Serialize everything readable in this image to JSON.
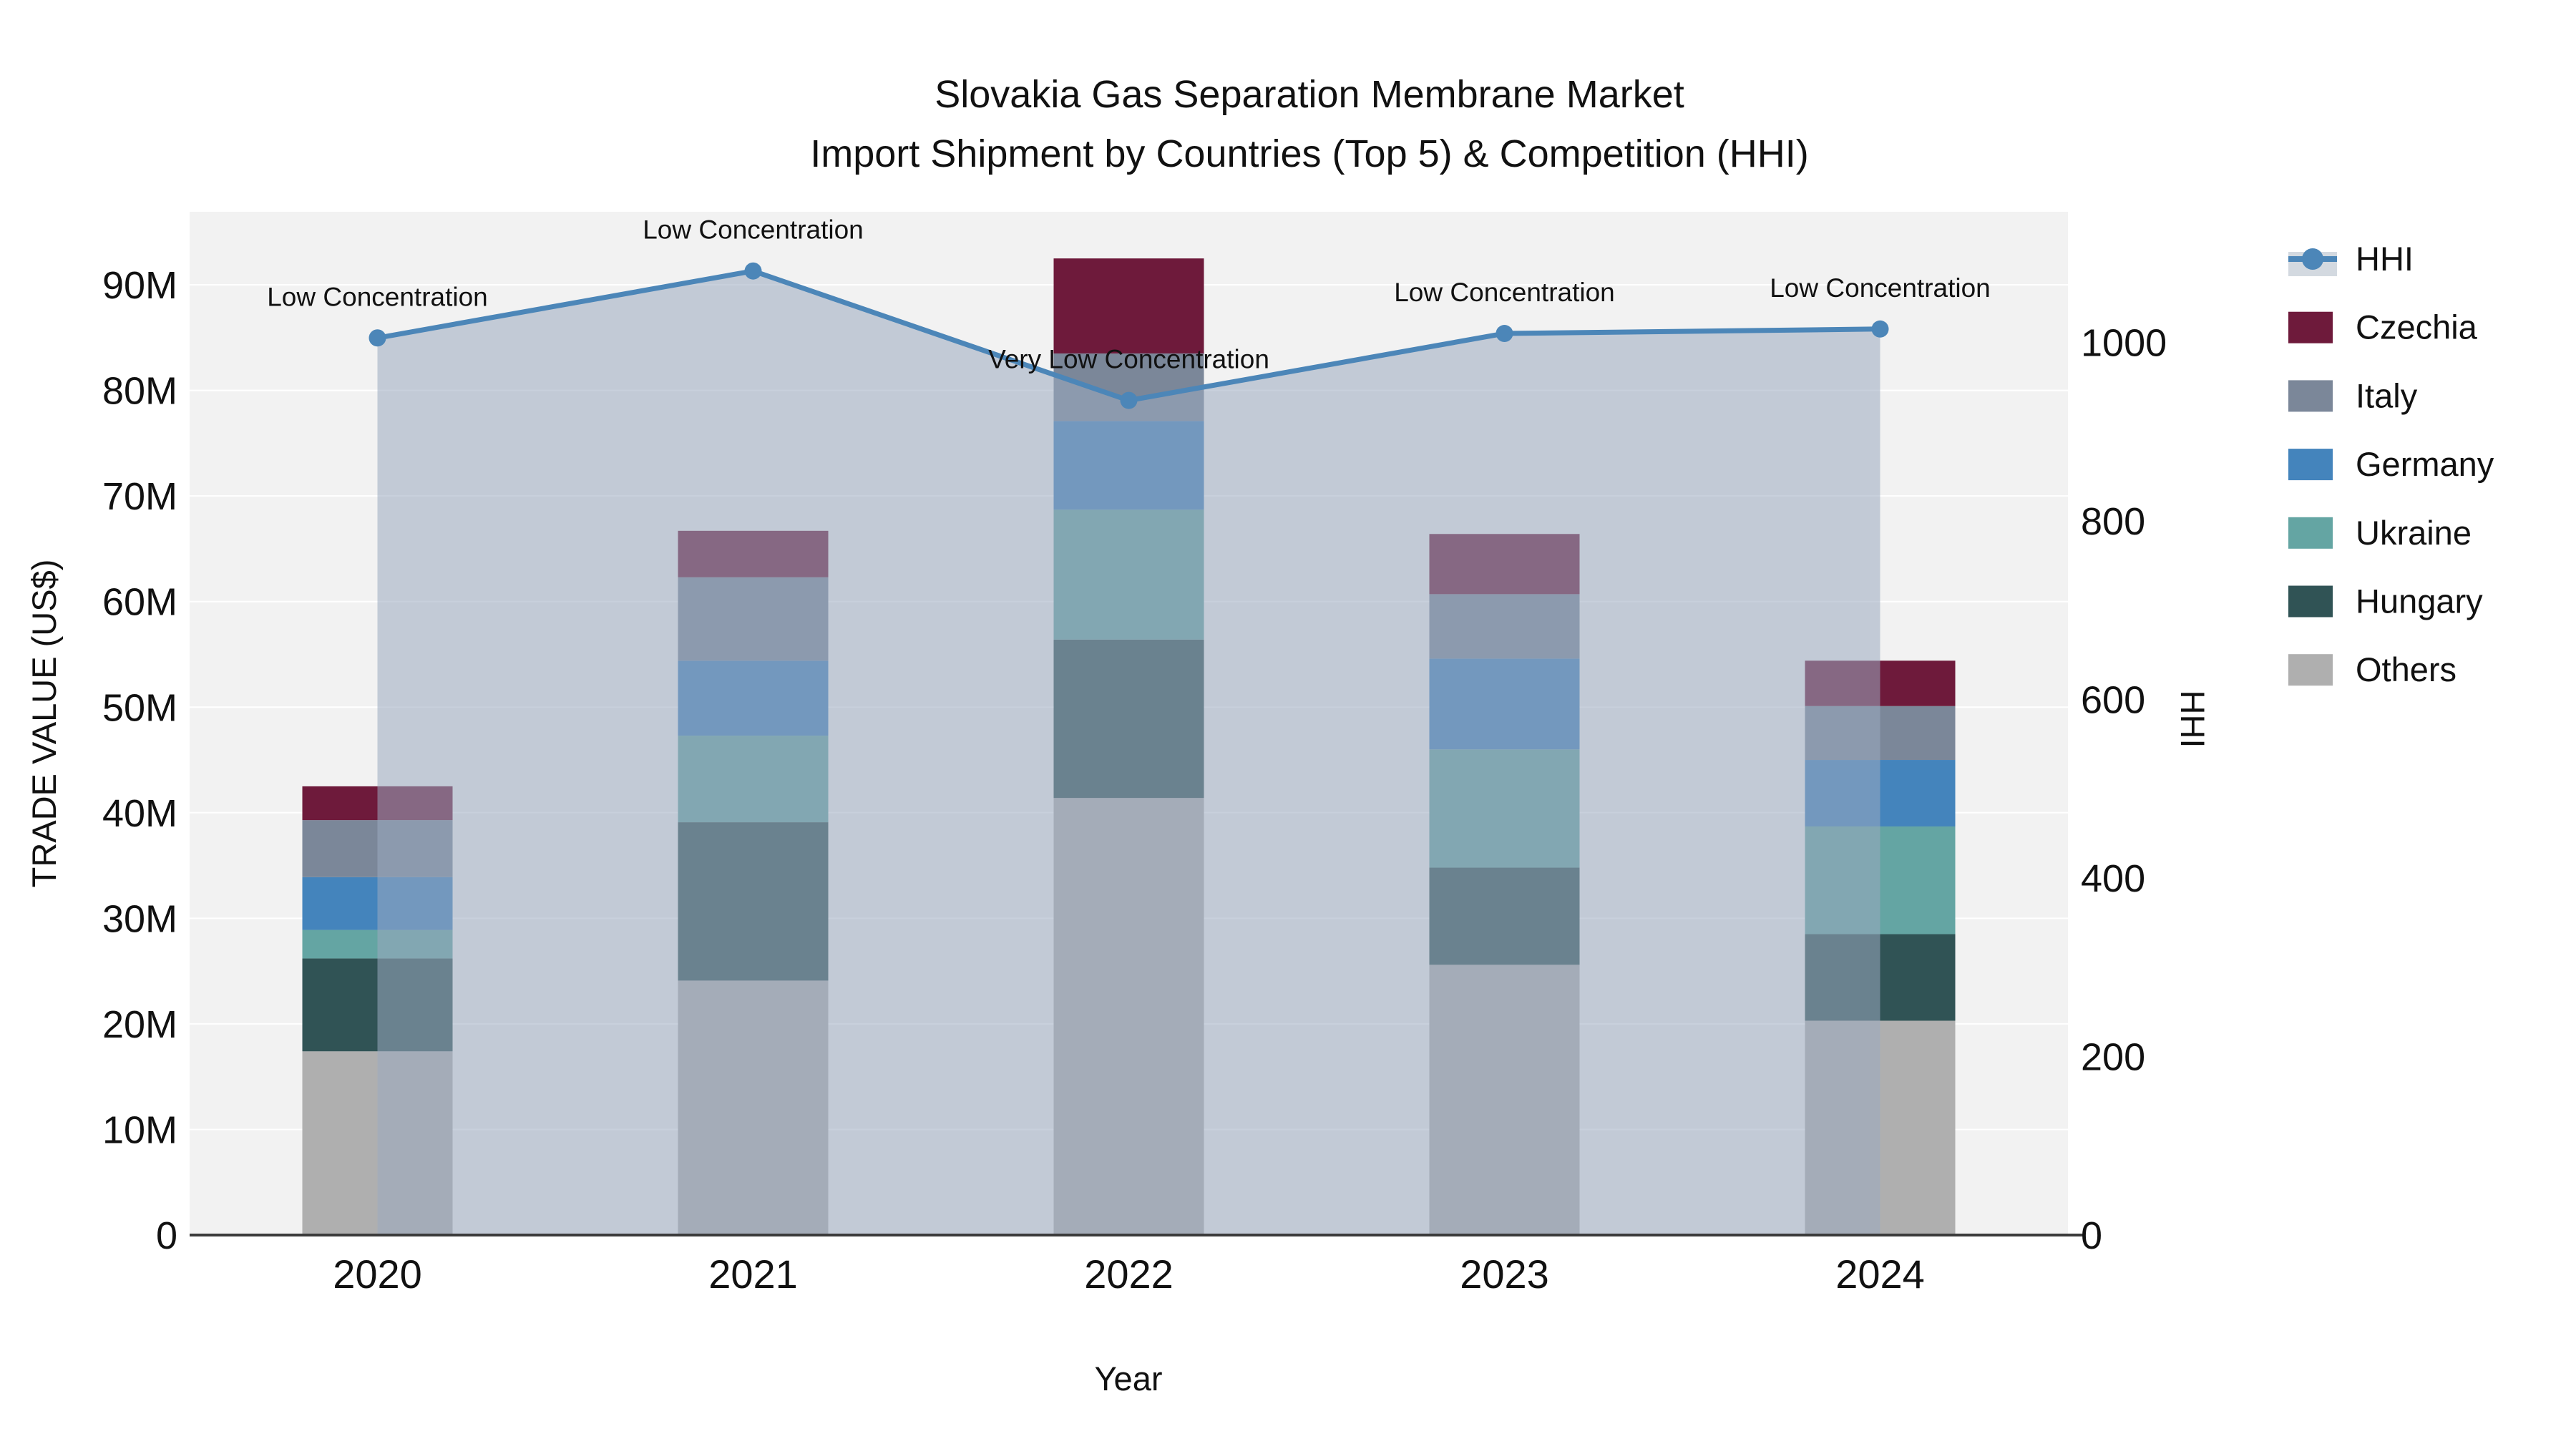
{
  "chart_data": {
    "type": "bar",
    "stacked": true,
    "overlay_line": true,
    "title": "Slovakia Gas Separation Membrane Market",
    "subtitle": "Import Shipment by Countries (Top 5) & Competition (HHI)",
    "xlabel": "Year",
    "ylabel_left": "TRADE VALUE (US$)",
    "ylabel_right": "HHI",
    "unit": "million US$",
    "categories": [
      "2020",
      "2021",
      "2022",
      "2023",
      "2024"
    ],
    "bar_series": [
      {
        "name": "Czechia",
        "color": "#6E1A3B",
        "values": [
          3.2,
          4.4,
          9.0,
          5.7,
          4.3
        ]
      },
      {
        "name": "Italy",
        "color": "#7B8799",
        "values": [
          5.4,
          7.9,
          6.4,
          6.1,
          5.1
        ]
      },
      {
        "name": "Germany",
        "color": "#4484BC",
        "values": [
          5.0,
          7.1,
          8.4,
          8.6,
          6.3
        ]
      },
      {
        "name": "Ukraine",
        "color": "#64A5A3",
        "values": [
          2.7,
          8.2,
          12.3,
          11.2,
          10.2
        ]
      },
      {
        "name": "Hungary",
        "color": "#305355",
        "values": [
          8.8,
          15.0,
          15.0,
          9.2,
          8.2
        ]
      },
      {
        "name": "Others",
        "color": "#AFAFAF",
        "values": [
          17.4,
          24.1,
          41.4,
          25.6,
          20.3
        ]
      }
    ],
    "stack_totals": [
      42.5,
      66.7,
      92.5,
      66.4,
      54.4
    ],
    "line_series": {
      "name": "HHI",
      "color": "#4C86B8",
      "fill_color": "rgba(154,170,192,0.55)",
      "values": [
        1005,
        1080,
        935,
        1010,
        1015
      ]
    },
    "annotations": [
      {
        "category": "2020",
        "text": "Low Concentration"
      },
      {
        "category": "2021",
        "text": "Low Concentration"
      },
      {
        "category": "2022",
        "text": "Very Low Concentration"
      },
      {
        "category": "2023",
        "text": "Low Concentration"
      },
      {
        "category": "2024",
        "text": "Low Concentration"
      }
    ],
    "left_axis": {
      "ticks": [
        "0",
        "10M",
        "20M",
        "30M",
        "40M",
        "50M",
        "60M",
        "70M",
        "80M",
        "90M"
      ],
      "tick_values": [
        0,
        10,
        20,
        30,
        40,
        50,
        60,
        70,
        80,
        90
      ],
      "range": [
        0,
        96.9
      ]
    },
    "right_axis": {
      "ticks": [
        "0",
        "200",
        "400",
        "600",
        "800",
        "1000"
      ],
      "tick_values": [
        0,
        200,
        400,
        600,
        800,
        1000
      ],
      "range": [
        0,
        1146
      ]
    },
    "legend": [
      "HHI",
      "Czechia",
      "Italy",
      "Germany",
      "Ukraine",
      "Hungary",
      "Others"
    ],
    "grid": true,
    "legend_position": "right",
    "plot_background": "#F2F2F2",
    "gridline_color": "#FFFFFF",
    "axisline_color": "#3B3B3B"
  }
}
